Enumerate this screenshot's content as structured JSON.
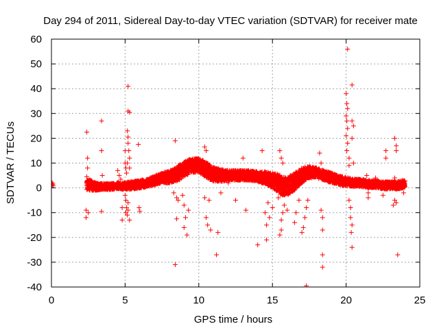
{
  "chart_data": {
    "type": "scatter",
    "title": "Day 294 of 2011, Sidereal Day-to-day VTEC variation (SDTVAR) for receiver mate",
    "xlabel": "GPS time / hours",
    "ylabel": "SDTVAR / TECUs",
    "xlim": [
      0,
      25
    ],
    "ylim": [
      -40,
      60
    ],
    "xticks": [
      0,
      5,
      10,
      15,
      20,
      25
    ],
    "yticks": [
      -40,
      -30,
      -20,
      -10,
      0,
      10,
      20,
      30,
      40,
      50,
      60
    ],
    "grid": true,
    "marker": "+",
    "color": "#ff0000",
    "band": {
      "description": "dense continuous band of samples (center and half-width in TECU)",
      "x": [
        2.4,
        3.0,
        3.5,
        4.0,
        4.5,
        5.0,
        5.5,
        6.0,
        6.5,
        7.0,
        7.5,
        8.0,
        8.5,
        9.0,
        9.5,
        10.0,
        10.3,
        10.7,
        11.0,
        11.5,
        12.0,
        12.5,
        13.0,
        13.5,
        14.0,
        14.5,
        15.0,
        15.3,
        15.6,
        16.0,
        16.5,
        17.0,
        17.5,
        18.0,
        18.5,
        19.0,
        19.5,
        20.0,
        20.5,
        21.0,
        21.5,
        22.0,
        22.5,
        23.0,
        23.5,
        24.0
      ],
      "center": [
        1.5,
        0.5,
        0.5,
        0.5,
        0.8,
        0.8,
        1.0,
        1.5,
        2.0,
        3.0,
        4.0,
        4.5,
        5.5,
        7.5,
        9.0,
        9.0,
        8.0,
        6.5,
        5.5,
        5.0,
        5.0,
        5.0,
        5.0,
        5.0,
        4.5,
        4.0,
        3.0,
        2.0,
        1.0,
        0.5,
        2.5,
        5.0,
        6.5,
        6.0,
        5.0,
        4.0,
        3.0,
        2.5,
        2.0,
        2.0,
        1.5,
        1.5,
        1.0,
        1.0,
        1.0,
        1.5
      ],
      "halfwidth": [
        2.5,
        1.5,
        1.2,
        1.2,
        1.3,
        1.5,
        1.5,
        1.6,
        1.6,
        1.8,
        2.0,
        2.5,
        3.0,
        3.0,
        2.8,
        2.8,
        3.0,
        3.0,
        2.8,
        2.5,
        2.0,
        2.0,
        2.0,
        2.0,
        2.0,
        2.5,
        3.0,
        3.5,
        4.0,
        3.5,
        3.5,
        3.0,
        2.5,
        2.0,
        2.0,
        2.0,
        1.8,
        1.8,
        1.5,
        1.5,
        1.5,
        1.5,
        1.5,
        1.5,
        1.5,
        1.5
      ]
    },
    "scatter_points": [
      {
        "x": 0.05,
        "y": 2.0
      },
      {
        "x": 0.05,
        "y": 1.2
      },
      {
        "x": 0.1,
        "y": 1.5
      },
      {
        "x": 0.12,
        "y": 0.8
      },
      {
        "x": 2.4,
        "y": 22.5
      },
      {
        "x": 2.45,
        "y": 12.0
      },
      {
        "x": 2.45,
        "y": 8.0
      },
      {
        "x": 2.4,
        "y": 4.5
      },
      {
        "x": 2.35,
        "y": -9.0
      },
      {
        "x": 2.35,
        "y": -12.0
      },
      {
        "x": 2.5,
        "y": -10.0
      },
      {
        "x": 3.4,
        "y": 27.0
      },
      {
        "x": 3.4,
        "y": 15.0
      },
      {
        "x": 3.45,
        "y": 5.0
      },
      {
        "x": 3.4,
        "y": -9.5
      },
      {
        "x": 4.5,
        "y": 7.0
      },
      {
        "x": 4.6,
        "y": 5.0
      },
      {
        "x": 4.7,
        "y": 3.5
      },
      {
        "x": 4.8,
        "y": -8.0
      },
      {
        "x": 4.8,
        "y": -13.0
      },
      {
        "x": 5.0,
        "y": 15.0
      },
      {
        "x": 5.0,
        "y": 10.0
      },
      {
        "x": 5.05,
        "y": 8.0
      },
      {
        "x": 5.1,
        "y": 6.0
      },
      {
        "x": 5.05,
        "y": -5.0
      },
      {
        "x": 5.1,
        "y": -8.0
      },
      {
        "x": 5.05,
        "y": -10.0
      },
      {
        "x": 5.0,
        "y": -3.0
      },
      {
        "x": 5.2,
        "y": 41.0
      },
      {
        "x": 5.2,
        "y": 31.0
      },
      {
        "x": 5.3,
        "y": 30.5
      },
      {
        "x": 5.15,
        "y": 23.0
      },
      {
        "x": 5.2,
        "y": 20.5
      },
      {
        "x": 5.2,
        "y": 18.0
      },
      {
        "x": 5.25,
        "y": 15.0
      },
      {
        "x": 5.3,
        "y": 12.0
      },
      {
        "x": 5.15,
        "y": 10.0
      },
      {
        "x": 5.3,
        "y": 8.0
      },
      {
        "x": 5.2,
        "y": -9.0
      },
      {
        "x": 5.3,
        "y": -13.0
      },
      {
        "x": 5.15,
        "y": -11.0
      },
      {
        "x": 5.2,
        "y": -6.0
      },
      {
        "x": 5.9,
        "y": 17.5
      },
      {
        "x": 5.95,
        "y": -8.0
      },
      {
        "x": 6.0,
        "y": -9.5
      },
      {
        "x": 8.4,
        "y": 19.0
      },
      {
        "x": 8.4,
        "y": -31.0
      },
      {
        "x": 8.5,
        "y": -12.5
      },
      {
        "x": 8.3,
        "y": -2.0
      },
      {
        "x": 8.5,
        "y": -4.0
      },
      {
        "x": 8.6,
        "y": -5.0
      },
      {
        "x": 9.0,
        "y": -7.0
      },
      {
        "x": 9.1,
        "y": -12.0
      },
      {
        "x": 9.0,
        "y": -16.0
      },
      {
        "x": 9.2,
        "y": -19.0
      },
      {
        "x": 8.9,
        "y": -3.0
      },
      {
        "x": 9.3,
        "y": -9.0
      },
      {
        "x": 10.4,
        "y": 16.5
      },
      {
        "x": 10.5,
        "y": 15.0
      },
      {
        "x": 10.5,
        "y": -12.0
      },
      {
        "x": 10.6,
        "y": -15.0
      },
      {
        "x": 10.8,
        "y": -17.0
      },
      {
        "x": 10.7,
        "y": -5.0
      },
      {
        "x": 10.4,
        "y": -4.0
      },
      {
        "x": 11.2,
        "y": -27.0
      },
      {
        "x": 11.3,
        "y": -18.0
      },
      {
        "x": 11.5,
        "y": -2.0
      },
      {
        "x": 11.5,
        "y": 7.0
      },
      {
        "x": 12.0,
        "y": 2.0
      },
      {
        "x": 12.5,
        "y": -5.0
      },
      {
        "x": 13.0,
        "y": 12.0
      },
      {
        "x": 13.2,
        "y": -9.0
      },
      {
        "x": 14.0,
        "y": -23.0
      },
      {
        "x": 14.3,
        "y": 15.0
      },
      {
        "x": 14.3,
        "y": 5.0
      },
      {
        "x": 14.5,
        "y": -10.0
      },
      {
        "x": 14.6,
        "y": -15.0
      },
      {
        "x": 14.6,
        "y": -21.0
      },
      {
        "x": 14.7,
        "y": -6.0
      },
      {
        "x": 14.8,
        "y": -12.0
      },
      {
        "x": 15.0,
        "y": -8.0
      },
      {
        "x": 15.5,
        "y": 15.0
      },
      {
        "x": 15.6,
        "y": 12.0
      },
      {
        "x": 15.7,
        "y": 10.0
      },
      {
        "x": 15.5,
        "y": -19.0
      },
      {
        "x": 15.6,
        "y": -17.0
      },
      {
        "x": 15.6,
        "y": -13.0
      },
      {
        "x": 15.7,
        "y": -10.0
      },
      {
        "x": 15.8,
        "y": -7.0
      },
      {
        "x": 16.0,
        "y": -9.0
      },
      {
        "x": 15.4,
        "y": -4.0
      },
      {
        "x": 16.5,
        "y": -14.0
      },
      {
        "x": 16.6,
        "y": -10.0
      },
      {
        "x": 16.8,
        "y": -5.0
      },
      {
        "x": 17.0,
        "y": -18.0
      },
      {
        "x": 17.1,
        "y": -16.0
      },
      {
        "x": 17.2,
        "y": -12.0
      },
      {
        "x": 17.3,
        "y": -39.5
      },
      {
        "x": 17.3,
        "y": -8.0
      },
      {
        "x": 17.4,
        "y": -5.0
      },
      {
        "x": 18.2,
        "y": 14.0
      },
      {
        "x": 18.3,
        "y": 10.0
      },
      {
        "x": 18.3,
        "y": -9.0
      },
      {
        "x": 18.4,
        "y": -12.0
      },
      {
        "x": 18.4,
        "y": -17.0
      },
      {
        "x": 18.4,
        "y": -27.0
      },
      {
        "x": 18.4,
        "y": -32.0
      },
      {
        "x": 20.1,
        "y": 56.0
      },
      {
        "x": 20.0,
        "y": 38.0
      },
      {
        "x": 20.05,
        "y": 34.0
      },
      {
        "x": 20.1,
        "y": 32.0
      },
      {
        "x": 20.0,
        "y": 29.0
      },
      {
        "x": 20.05,
        "y": 27.0
      },
      {
        "x": 20.1,
        "y": 24.0
      },
      {
        "x": 20.0,
        "y": 21.0
      },
      {
        "x": 20.1,
        "y": 18.0
      },
      {
        "x": 20.05,
        "y": 15.0
      },
      {
        "x": 20.2,
        "y": 12.0
      },
      {
        "x": 20.2,
        "y": 9.0
      },
      {
        "x": 20.4,
        "y": 41.5
      },
      {
        "x": 20.4,
        "y": 27.0
      },
      {
        "x": 20.5,
        "y": 25.0
      },
      {
        "x": 20.4,
        "y": 20.0
      },
      {
        "x": 20.5,
        "y": 10.0
      },
      {
        "x": 20.3,
        "y": -8.0
      },
      {
        "x": 20.3,
        "y": -12.0
      },
      {
        "x": 20.4,
        "y": -15.0
      },
      {
        "x": 20.35,
        "y": -18.0
      },
      {
        "x": 20.4,
        "y": -24.0
      },
      {
        "x": 20.2,
        "y": -5.0
      },
      {
        "x": 21.4,
        "y": 5.0
      },
      {
        "x": 21.5,
        "y": -2.0
      },
      {
        "x": 21.5,
        "y": -4.0
      },
      {
        "x": 22.0,
        "y": 4.0
      },
      {
        "x": 22.5,
        "y": -3.0
      },
      {
        "x": 22.7,
        "y": 15.0
      },
      {
        "x": 22.7,
        "y": 12.0
      },
      {
        "x": 23.3,
        "y": 20.0
      },
      {
        "x": 23.4,
        "y": 17.0
      },
      {
        "x": 23.4,
        "y": 15.0
      },
      {
        "x": 23.3,
        "y": 4.0
      },
      {
        "x": 23.3,
        "y": -5.0
      },
      {
        "x": 23.2,
        "y": -7.0
      },
      {
        "x": 23.4,
        "y": -6.0
      },
      {
        "x": 23.5,
        "y": -27.0
      },
      {
        "x": 23.8,
        "y": 3.0
      },
      {
        "x": 23.9,
        "y": -2.0
      }
    ]
  }
}
